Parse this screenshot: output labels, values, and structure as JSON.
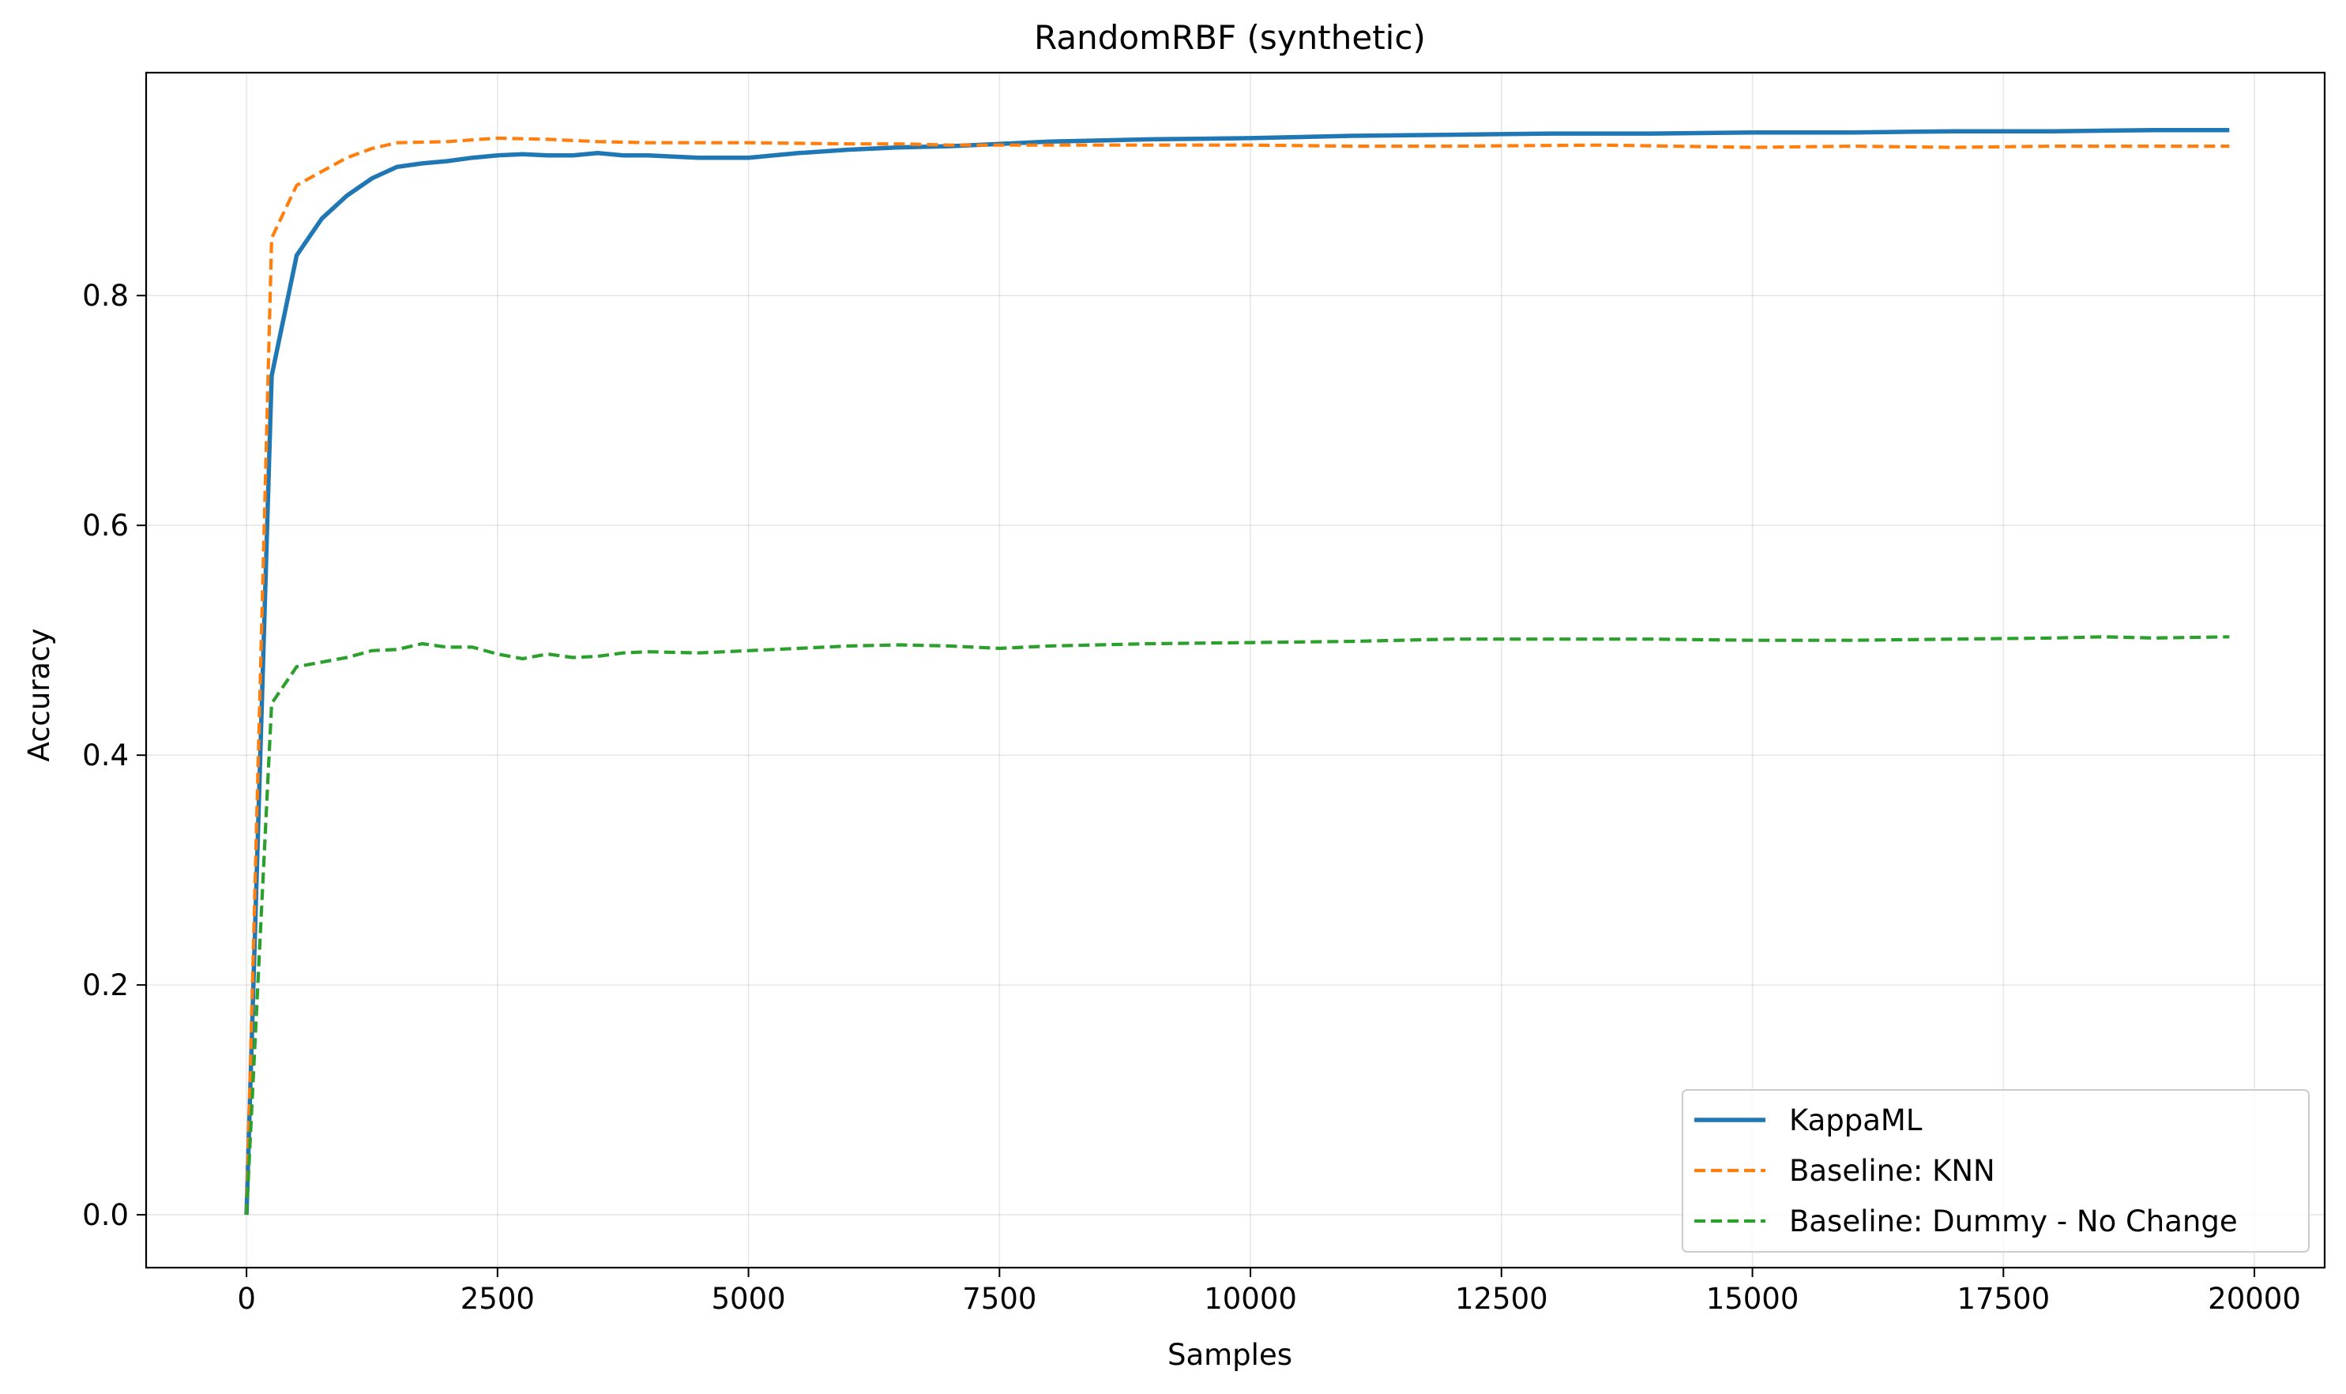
{
  "chart_data": {
    "type": "line",
    "title": "RandomRBF (synthetic)",
    "xlabel": "Samples",
    "ylabel": "Accuracy",
    "xlim": [
      -1000,
      20700
    ],
    "ylim": [
      -0.046,
      0.994
    ],
    "xticks": [
      0,
      2500,
      5000,
      7500,
      10000,
      12500,
      15000,
      17500,
      20000
    ],
    "yticks": [
      0.0,
      0.2,
      0.4,
      0.6,
      0.8
    ],
    "grid": true,
    "legend_position": "bottom-right",
    "series": [
      {
        "name": "KappaML",
        "color": "#1f77b4",
        "style": "solid",
        "x": [
          0,
          250,
          500,
          750,
          1000,
          1250,
          1500,
          1750,
          2000,
          2250,
          2500,
          2750,
          3000,
          3250,
          3500,
          3750,
          4000,
          4500,
          5000,
          5500,
          6000,
          6500,
          7000,
          7500,
          8000,
          9000,
          10000,
          11000,
          12000,
          13000,
          14000,
          15000,
          16000,
          17000,
          18000,
          19000,
          19750
        ],
        "y": [
          0.0,
          0.73,
          0.835,
          0.867,
          0.887,
          0.902,
          0.912,
          0.915,
          0.917,
          0.92,
          0.922,
          0.923,
          0.922,
          0.922,
          0.924,
          0.922,
          0.922,
          0.92,
          0.92,
          0.924,
          0.927,
          0.929,
          0.93,
          0.932,
          0.934,
          0.936,
          0.937,
          0.939,
          0.94,
          0.941,
          0.941,
          0.942,
          0.942,
          0.943,
          0.943,
          0.944,
          0.944
        ]
      },
      {
        "name": "Baseline: KNN",
        "color": "#ff7f0e",
        "style": "dashed",
        "x": [
          0,
          250,
          500,
          750,
          1000,
          1250,
          1500,
          2000,
          2500,
          3000,
          3500,
          4000,
          5000,
          6000,
          6500,
          7000,
          8000,
          9000,
          10000,
          11000,
          12000,
          13500,
          15000,
          16000,
          17000,
          18000,
          19000,
          19750
        ],
        "y": [
          0.0,
          0.85,
          0.896,
          0.908,
          0.92,
          0.928,
          0.933,
          0.934,
          0.937,
          0.936,
          0.934,
          0.933,
          0.933,
          0.932,
          0.932,
          0.931,
          0.931,
          0.931,
          0.931,
          0.93,
          0.93,
          0.931,
          0.929,
          0.93,
          0.929,
          0.93,
          0.93,
          0.93
        ]
      },
      {
        "name": "Baseline: Dummy - No Change",
        "color": "#2ca02c",
        "style": "dashed",
        "x": [
          0,
          250,
          500,
          750,
          1000,
          1250,
          1500,
          1750,
          2000,
          2250,
          2500,
          2750,
          3000,
          3250,
          3500,
          3750,
          4000,
          4500,
          5000,
          5500,
          6000,
          6500,
          7000,
          7500,
          8000,
          9000,
          10000,
          11000,
          12000,
          13000,
          14000,
          15000,
          16000,
          17000,
          18000,
          18500,
          19000,
          19750
        ],
        "y": [
          0.0,
          0.445,
          0.477,
          0.481,
          0.485,
          0.491,
          0.492,
          0.497,
          0.494,
          0.494,
          0.488,
          0.484,
          0.488,
          0.485,
          0.486,
          0.489,
          0.49,
          0.489,
          0.491,
          0.493,
          0.495,
          0.496,
          0.495,
          0.493,
          0.495,
          0.497,
          0.498,
          0.499,
          0.501,
          0.501,
          0.501,
          0.5,
          0.5,
          0.501,
          0.502,
          0.503,
          0.502,
          0.503
        ]
      }
    ]
  }
}
